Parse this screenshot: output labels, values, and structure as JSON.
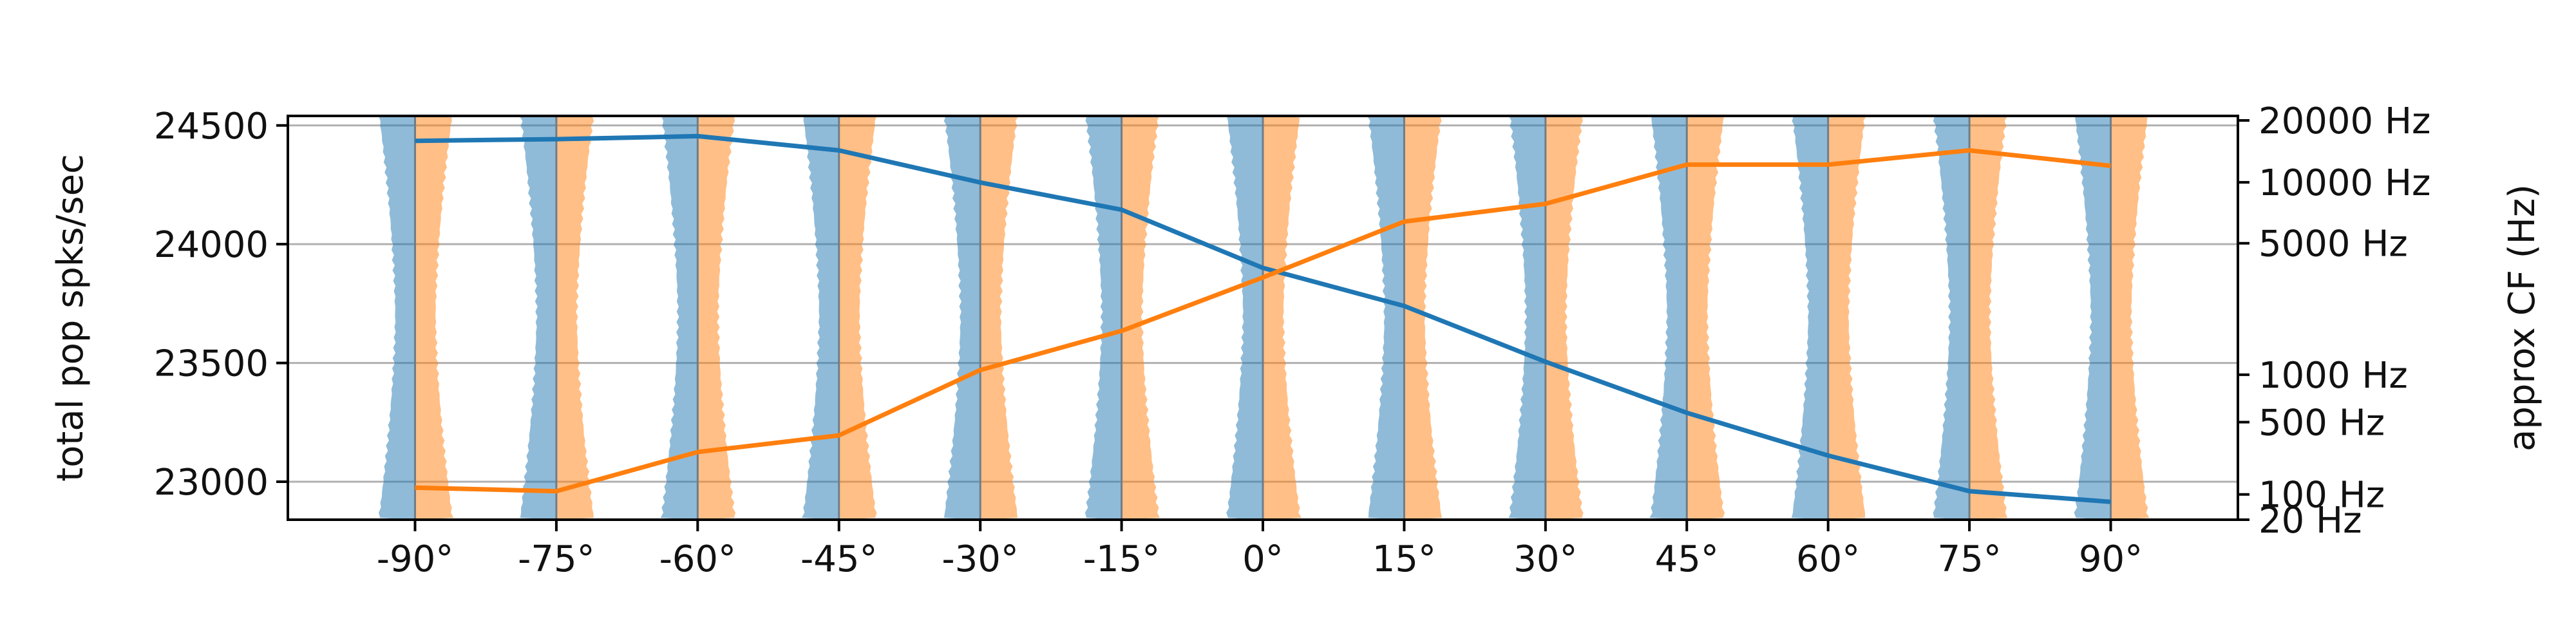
{
  "chart_data": {
    "type": "line",
    "x": [
      -90,
      -75,
      -60,
      -45,
      -30,
      -15,
      0,
      15,
      30,
      45,
      60,
      75,
      90
    ],
    "x_tick_labels": [
      "-90°",
      "-75°",
      "-60°",
      "-45°",
      "-30°",
      "-15°",
      "0°",
      "15°",
      "30°",
      "45°",
      "60°",
      "75°",
      "90°"
    ],
    "xlim": [
      -103.5,
      103.5
    ],
    "ylabel": "total pop spks/sec",
    "ylim": [
      22840,
      24540
    ],
    "y_ticks": [
      23000,
      23500,
      24000,
      24500
    ],
    "y_tick_labels": [
      "23000",
      "23500",
      "24000",
      "24500"
    ],
    "y2label": "approx CF (Hz)",
    "y2_scale": "log (ERB-like)",
    "y2_ticks": [
      20,
      100,
      500,
      1000,
      5000,
      10000,
      20000
    ],
    "y2_tick_labels": [
      "20 Hz",
      "100 Hz",
      "500 Hz",
      "1000 Hz",
      "5000 Hz",
      "10000 Hz",
      "20000 Hz"
    ],
    "grid": "horizontal",
    "series": [
      {
        "color": "#1f77b4",
        "axis": "left",
        "values": [
          24435,
          24442,
          24455,
          24395,
          24260,
          24145,
          23900,
          23740,
          23505,
          23290,
          23110,
          22960,
          22915
        ]
      },
      {
        "color": "#ff7f0e",
        "axis": "right",
        "values": [
          22975,
          22960,
          23125,
          23195,
          23470,
          23635,
          23860,
          24095,
          24170,
          24335,
          24335,
          24395,
          24330
        ]
      }
    ],
    "distributions": {
      "left_color": "#1f77b4",
      "right_color": "#ff7f0e",
      "opacity": 0.5,
      "note_shape": "violin-like distributions at each angle (blue left, orange right)"
    }
  }
}
